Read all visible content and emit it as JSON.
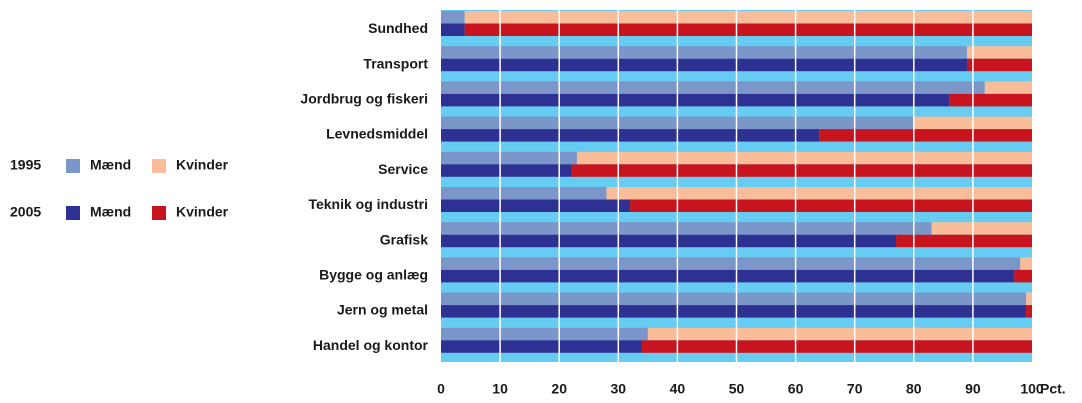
{
  "chart_data": {
    "type": "stacked-barh",
    "categories": [
      "Sundhed",
      "Transport",
      "Jordbrug og fiskeri",
      "Levnedsmiddel",
      "Service",
      "Teknik og industri",
      "Grafisk",
      "Bygge og anlæg",
      "Jern og metal",
      "Handel og kontor"
    ],
    "series": [
      {
        "name": "Mænd",
        "stack": "1995",
        "color": "#7b97c9",
        "values": [
          4,
          89,
          92,
          80,
          23,
          28,
          83,
          98,
          99,
          35
        ]
      },
      {
        "name": "Kvinder",
        "stack": "1995",
        "color": "#f9bd9a",
        "values": [
          96,
          11,
          8,
          20,
          77,
          72,
          17,
          2,
          1,
          65
        ]
      },
      {
        "name": "Mænd",
        "stack": "2005",
        "color": "#2e3192",
        "values": [
          4,
          89,
          86,
          64,
          22,
          32,
          77,
          97,
          99,
          34
        ]
      },
      {
        "name": "Kvinder",
        "stack": "2005",
        "color": "#c8141e",
        "values": [
          96,
          11,
          14,
          36,
          78,
          68,
          23,
          3,
          1,
          66
        ]
      }
    ],
    "xlabel": "Pct.",
    "xlim": [
      0,
      100
    ],
    "xticks": [
      0,
      10,
      20,
      30,
      40,
      50,
      60,
      70,
      80,
      90,
      100
    ],
    "background": "#66ccf2",
    "grid": true
  }
}
